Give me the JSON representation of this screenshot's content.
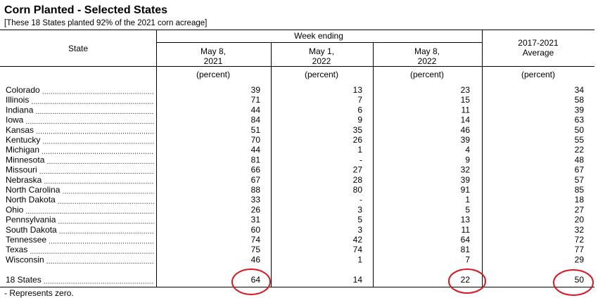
{
  "title": "Corn Planted - Selected States",
  "subtitle": "[These 18 States planted 92% of the 2021 corn acreage]",
  "table": {
    "header": {
      "state": "State",
      "group": "Week ending",
      "columns": [
        [
          "May 8,",
          "2021"
        ],
        [
          "May 1,",
          "2022"
        ],
        [
          "May 8,",
          "2022"
        ],
        [
          "2017-2021",
          "Average"
        ]
      ]
    },
    "units": [
      "(percent)",
      "(percent)",
      "(percent)",
      "(percent)"
    ],
    "rows": [
      [
        "Colorado",
        39,
        13,
        23,
        34
      ],
      [
        "Illinois",
        71,
        7,
        15,
        58
      ],
      [
        "Indiana",
        44,
        6,
        11,
        39
      ],
      [
        "Iowa",
        84,
        9,
        14,
        63
      ],
      [
        "Kansas",
        51,
        35,
        46,
        50
      ],
      [
        "Kentucky",
        70,
        26,
        39,
        55
      ],
      [
        "Michigan",
        44,
        1,
        4,
        22
      ],
      [
        "Minnesota",
        81,
        "-",
        9,
        48
      ],
      [
        "Missouri",
        66,
        27,
        32,
        67
      ],
      [
        "Nebraska",
        67,
        28,
        39,
        57
      ],
      [
        "North Carolina",
        88,
        80,
        91,
        85
      ],
      [
        "North Dakota",
        33,
        "-",
        1,
        18
      ],
      [
        "Ohio",
        26,
        3,
        5,
        27
      ],
      [
        "Pennsylvania",
        31,
        5,
        13,
        20
      ],
      [
        "South Dakota",
        60,
        3,
        11,
        32
      ],
      [
        "Tennessee",
        74,
        42,
        64,
        72
      ],
      [
        "Texas",
        75,
        74,
        81,
        77
      ],
      [
        "Wisconsin",
        46,
        1,
        7,
        29
      ]
    ],
    "total": [
      "18 States",
      64,
      14,
      22,
      50
    ]
  },
  "footnote": "- Represents zero."
}
